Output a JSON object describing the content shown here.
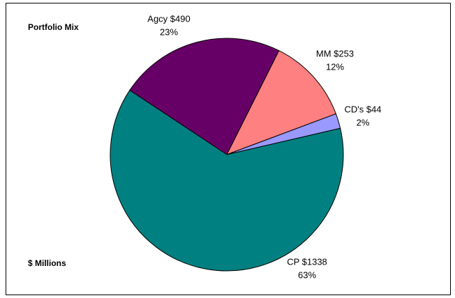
{
  "chart_data": {
    "type": "pie",
    "title": "Portfolio Mix",
    "subtitle": "$ Millions",
    "values": [
      490,
      253,
      44,
      1338
    ],
    "value_labels": [
      "Agcy $490",
      "MM $253",
      "CD's $44",
      "CP $1338"
    ],
    "shares": [
      23,
      12,
      2,
      63
    ],
    "share_labels": [
      "23%",
      "12%",
      "2%",
      "63%"
    ],
    "colors": [
      "#660066",
      "#ff8080",
      "#9999ff",
      "#008080"
    ]
  }
}
